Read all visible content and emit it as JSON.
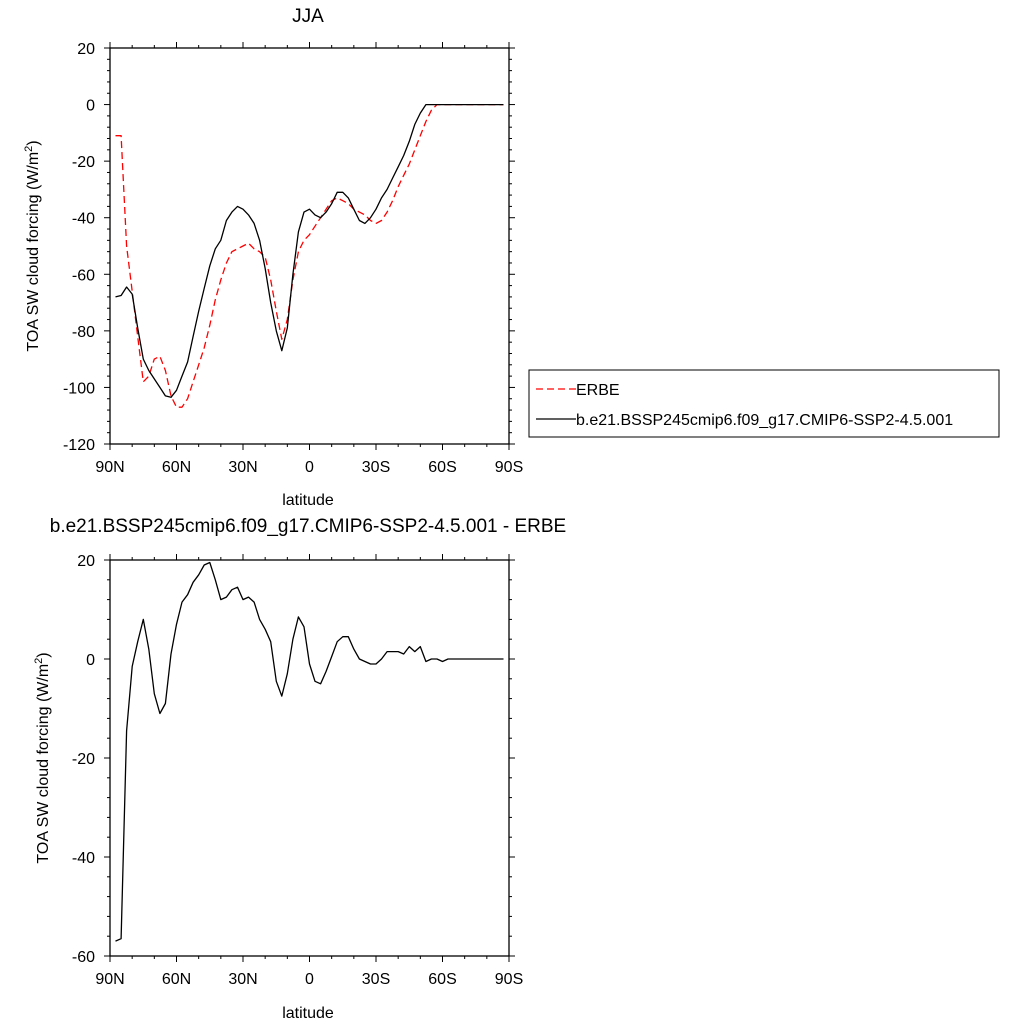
{
  "colors": {
    "erbe": "#ff0000",
    "model": "#000000"
  },
  "chart_data": [
    {
      "type": "line",
      "title": "JJA",
      "xlabel": "latitude",
      "ylabel": "TOA SW cloud forcing (W/m²)",
      "xlim": [
        90,
        -90
      ],
      "ylim": [
        -120,
        20
      ],
      "xticks": [
        90,
        60,
        30,
        0,
        -30,
        -60,
        -90
      ],
      "xtick_labels": [
        "90N",
        "60N",
        "30N",
        "0",
        "30S",
        "60S",
        "90S"
      ],
      "yticks": [
        -120,
        -100,
        -80,
        -60,
        -40,
        -20,
        0,
        20
      ],
      "ytick_labels": [
        "-120",
        "-100",
        "-80",
        "-60",
        "-40",
        "-20",
        "0",
        "20"
      ],
      "legend": {
        "placement": "right",
        "entries": [
          "ERBE",
          "b.e21.BSSP245cmip6.f09_g17.CMIP6-SSP2-4.5.001"
        ]
      },
      "series": [
        {
          "name": "ERBE",
          "style": "dashed",
          "x": [
            87.5,
            85,
            82.5,
            80,
            77.5,
            75,
            72.5,
            70,
            67.5,
            65,
            62.5,
            60,
            57.5,
            55,
            52.5,
            50,
            47.5,
            45,
            42.5,
            40,
            37.5,
            35,
            32.5,
            30,
            27.5,
            25,
            22.5,
            20,
            17.5,
            15,
            12.5,
            10,
            7.5,
            5,
            2.5,
            0,
            -2.5,
            -5,
            -7.5,
            -10,
            -12.5,
            -15,
            -17.5,
            -20,
            -22.5,
            -25,
            -27.5,
            -30,
            -32.5,
            -35,
            -37.5,
            -40,
            -42.5,
            -45,
            -47.5,
            -50,
            -52.5,
            -55,
            -57.5,
            -60,
            -62.5,
            -65,
            -67.5,
            -70,
            -72.5,
            -75,
            -77.5,
            -80,
            -82.5,
            -85,
            -87.5
          ],
          "values": [
            -11,
            -11,
            -50,
            -66,
            -82,
            -98,
            -96,
            -90,
            -89,
            -94,
            -103,
            -107,
            -107,
            -104,
            -98,
            -92,
            -86,
            -78,
            -69,
            -62,
            -56,
            -52,
            -51,
            -50,
            -49,
            -51,
            -52,
            -54,
            -62,
            -73,
            -83,
            -76,
            -62,
            -52,
            -48,
            -46,
            -43,
            -40,
            -37,
            -34,
            -33,
            -34,
            -35,
            -37,
            -38,
            -39,
            -41,
            -42,
            -41,
            -38,
            -34,
            -29,
            -25,
            -21,
            -16,
            -11,
            -6,
            -2,
            0,
            0,
            0,
            0,
            0,
            0,
            0,
            0,
            0,
            0,
            0,
            0,
            0
          ]
        },
        {
          "name": "b.e21.BSSP245cmip6.f09_g17.CMIP6-SSP2-4.5.001",
          "style": "solid",
          "x": [
            87.5,
            85,
            82.5,
            80,
            77.5,
            75,
            72.5,
            70,
            67.5,
            65,
            62.5,
            60,
            57.5,
            55,
            52.5,
            50,
            47.5,
            45,
            42.5,
            40,
            37.5,
            35,
            32.5,
            30,
            27.5,
            25,
            22.5,
            20,
            17.5,
            15,
            12.5,
            10,
            7.5,
            5,
            2.5,
            0,
            -2.5,
            -5,
            -7.5,
            -10,
            -12.5,
            -15,
            -17.5,
            -20,
            -22.5,
            -25,
            -27.5,
            -30,
            -32.5,
            -35,
            -37.5,
            -40,
            -42.5,
            -45,
            -47.5,
            -50,
            -52.5,
            -55,
            -57.5,
            -60,
            -62.5,
            -65,
            -67.5,
            -70,
            -72.5,
            -75,
            -77.5,
            -80,
            -82.5,
            -85,
            -87.5
          ],
          "values": [
            -68,
            -67.5,
            -64.5,
            -67,
            -79,
            -90,
            -94,
            -97,
            -100,
            -103,
            -103.5,
            -101,
            -96,
            -91,
            -82,
            -73,
            -65,
            -57,
            -51,
            -48,
            -41,
            -38,
            -36,
            -37,
            -39,
            -42,
            -48,
            -58,
            -70,
            -80,
            -87,
            -79,
            -60,
            -45,
            -38,
            -37,
            -39,
            -40,
            -38,
            -35,
            -31,
            -31,
            -33,
            -37,
            -41,
            -42,
            -40,
            -37,
            -33,
            -30,
            -26,
            -22,
            -18,
            -13,
            -7,
            -3,
            0,
            0,
            0,
            0,
            0,
            0,
            0,
            0,
            0,
            0,
            0,
            0,
            0,
            0,
            0
          ]
        }
      ]
    },
    {
      "type": "line",
      "title": "b.e21.BSSP245cmip6.f09_g17.CMIP6-SSP2-4.5.001 - ERBE",
      "xlabel": "latitude",
      "ylabel": "TOA SW cloud forcing (W/m²)",
      "xlim": [
        90,
        -90
      ],
      "ylim": [
        -60,
        20
      ],
      "xticks": [
        90,
        60,
        30,
        0,
        -30,
        -60,
        -90
      ],
      "xtick_labels": [
        "90N",
        "60N",
        "30N",
        "0",
        "30S",
        "60S",
        "90S"
      ],
      "yticks": [
        -60,
        -40,
        -20,
        0,
        20
      ],
      "ytick_labels": [
        "-60",
        "-40",
        "-20",
        "0",
        "20"
      ],
      "series": [
        {
          "style": "solid",
          "x": [
            87.5,
            85,
            82.5,
            80,
            77.5,
            75,
            72.5,
            70,
            67.5,
            65,
            62.5,
            60,
            57.5,
            55,
            52.5,
            50,
            47.5,
            45,
            42.5,
            40,
            37.5,
            35,
            32.5,
            30,
            27.5,
            25,
            22.5,
            20,
            17.5,
            15,
            12.5,
            10,
            7.5,
            5,
            2.5,
            0,
            -2.5,
            -5,
            -7.5,
            -10,
            -12.5,
            -15,
            -17.5,
            -20,
            -22.5,
            -25,
            -27.5,
            -30,
            -32.5,
            -35,
            -37.5,
            -40,
            -42.5,
            -45,
            -47.5,
            -50,
            -52.5,
            -55,
            -57.5,
            -60,
            -62.5,
            -65,
            -67.5,
            -70,
            -72.5,
            -75,
            -77.5,
            -80,
            -82.5,
            -85,
            -87.5
          ],
          "values": [
            -57,
            -56.5,
            -14.5,
            -1.5,
            3.5,
            8,
            2,
            -7,
            -11,
            -9,
            1,
            7,
            11.5,
            13,
            15.5,
            17,
            19,
            19.5,
            16,
            12,
            12.5,
            14,
            14.5,
            12,
            12.5,
            11.5,
            8,
            6,
            3.5,
            -4.5,
            -7.5,
            -3,
            4,
            8.5,
            6.5,
            -1,
            -4.5,
            -5,
            -2.5,
            0.5,
            3.5,
            4.5,
            4.5,
            2,
            0,
            -0.5,
            -1,
            -1,
            0,
            1.5,
            1.5,
            1.5,
            1,
            2.5,
            1.5,
            2.5,
            -0.5,
            0,
            0,
            -0.5,
            0,
            0,
            0,
            0,
            0,
            0,
            0,
            0,
            0,
            0,
            0
          ]
        }
      ]
    }
  ]
}
